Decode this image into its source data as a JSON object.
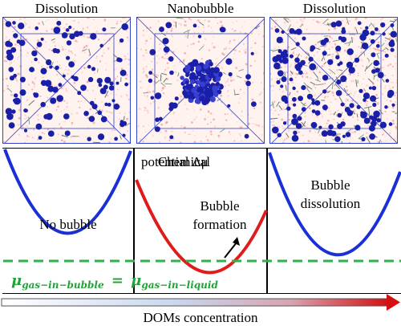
{
  "snapshots": [
    {
      "label": "Dissolution",
      "state": "dispersed"
    },
    {
      "label": "Nanobubble",
      "state": "clustered"
    },
    {
      "label": "Dissolution",
      "state": "dense-dispersed"
    }
  ],
  "potential_title": "Chemical potential Δμ",
  "potential_title_parts": [
    "Chemical",
    "potential Δμ"
  ],
  "panels": [
    {
      "label": "No bubble",
      "curve_color": "#1b2fd6"
    },
    {
      "label_lines": [
        "Bubble",
        "formation"
      ],
      "curve_color": "#e01b1b"
    },
    {
      "label_lines": [
        "Bubble",
        "dissolution"
      ],
      "curve_color": "#1b2fd6"
    }
  ],
  "equilibrium": {
    "mu_symbol": "μ",
    "lhs_sub": "gas−in−bubble",
    "equals": "=",
    "rhs_sub": "gas−in−liquid",
    "line_color": "#2db34a"
  },
  "axis_label": "DOMs concentration",
  "colors": {
    "frame": "#3344cc",
    "molecule": "#1a1fa8",
    "water": "#f3b8b8",
    "arrow_start": "#ffffff",
    "arrow_end": "#d41010"
  }
}
